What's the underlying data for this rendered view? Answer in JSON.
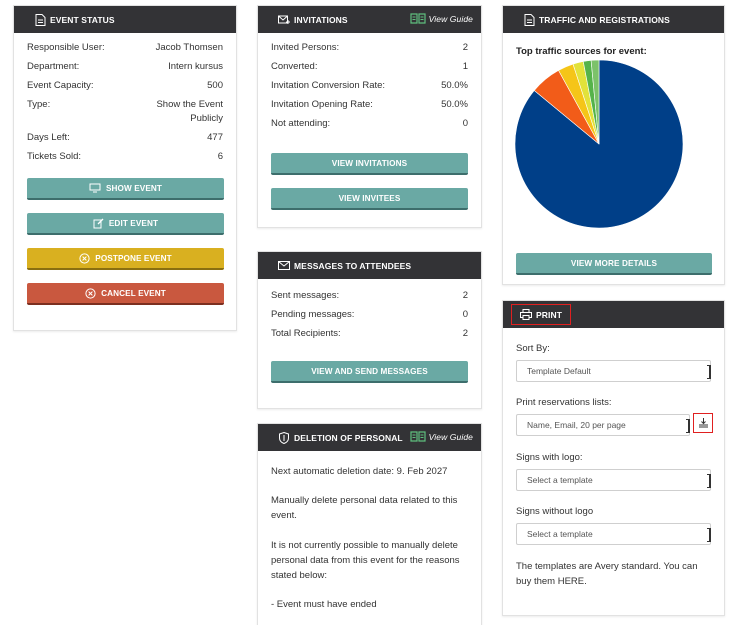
{
  "event_status": {
    "title": "EVENT STATUS",
    "rows": [
      {
        "label": "Responsible User:",
        "value": "Jacob Thomsen"
      },
      {
        "label": "Department:",
        "value": "Intern kursus"
      },
      {
        "label": "Event Capacity:",
        "value": "500"
      },
      {
        "label": "Type:",
        "value": "Show the Event Publicly"
      },
      {
        "label": "Days Left:",
        "value": "477"
      },
      {
        "label": "Tickets Sold:",
        "value": "6"
      }
    ],
    "buttons": {
      "show": "SHOW EVENT",
      "edit": "EDIT EVENT",
      "postpone": "POSTPONE EVENT",
      "cancel": "CANCEL EVENT"
    },
    "colors": {
      "teal": "#6aa9a4",
      "yellow": "#d9b020",
      "red": "#c9583f"
    }
  },
  "invitations": {
    "title": "INVITATIONS",
    "guide": "View Guide",
    "rows": [
      {
        "label": "Invited Persons:",
        "value": "2"
      },
      {
        "label": "Converted:",
        "value": "1"
      },
      {
        "label": "Invitation Conversion Rate:",
        "value": "50.0%"
      },
      {
        "label": "Invitation Opening Rate:",
        "value": "50.0%"
      },
      {
        "label": "Not attending:",
        "value": "0"
      }
    ],
    "buttons": {
      "view_invitations": "VIEW INVITATIONS",
      "view_invitees": "VIEW INVITEES"
    }
  },
  "messages": {
    "title": "MESSAGES TO ATTENDEES",
    "rows": [
      {
        "label": "Sent messages:",
        "value": "2"
      },
      {
        "label": "Pending messages:",
        "value": "0"
      },
      {
        "label": "Total Recipients:",
        "value": "2"
      }
    ],
    "button": "VIEW AND SEND MESSAGES"
  },
  "deletion": {
    "title": "DELETION OF PERSONAL",
    "guide": "View Guide",
    "paragraphs": [
      "Next automatic deletion date: 9. Feb 2027",
      "Manually delete personal data related to this event.",
      "It is not currently possible to manually delete personal data from this event for the reasons stated below:",
      "- Event must have ended"
    ]
  },
  "traffic": {
    "title": "TRAFFIC AND REGISTRATIONS",
    "subtitle": "Top traffic sources for event:",
    "button": "VIEW MORE DETAILS"
  },
  "chart_data": {
    "type": "pie",
    "title": "Top traffic sources for event:",
    "values": [
      86,
      6,
      3,
      2,
      1.5,
      1.5
    ],
    "colors": [
      "#003f88",
      "#f25c19",
      "#f5c518",
      "#e2e23a",
      "#55b34a",
      "#7cc26a"
    ]
  },
  "print": {
    "title": "PRINT",
    "sort_by": {
      "label": "Sort By:",
      "value": "Template Default"
    },
    "reservations": {
      "label": "Print reservations lists:",
      "value": "Name, Email, 20 per page"
    },
    "signs_logo": {
      "label": "Signs with logo:",
      "value": "Select a template"
    },
    "signs_no_logo": {
      "label": "Signs without logo",
      "value": "Select a template"
    },
    "footer": "The templates are Avery standard. You can buy them HERE."
  }
}
